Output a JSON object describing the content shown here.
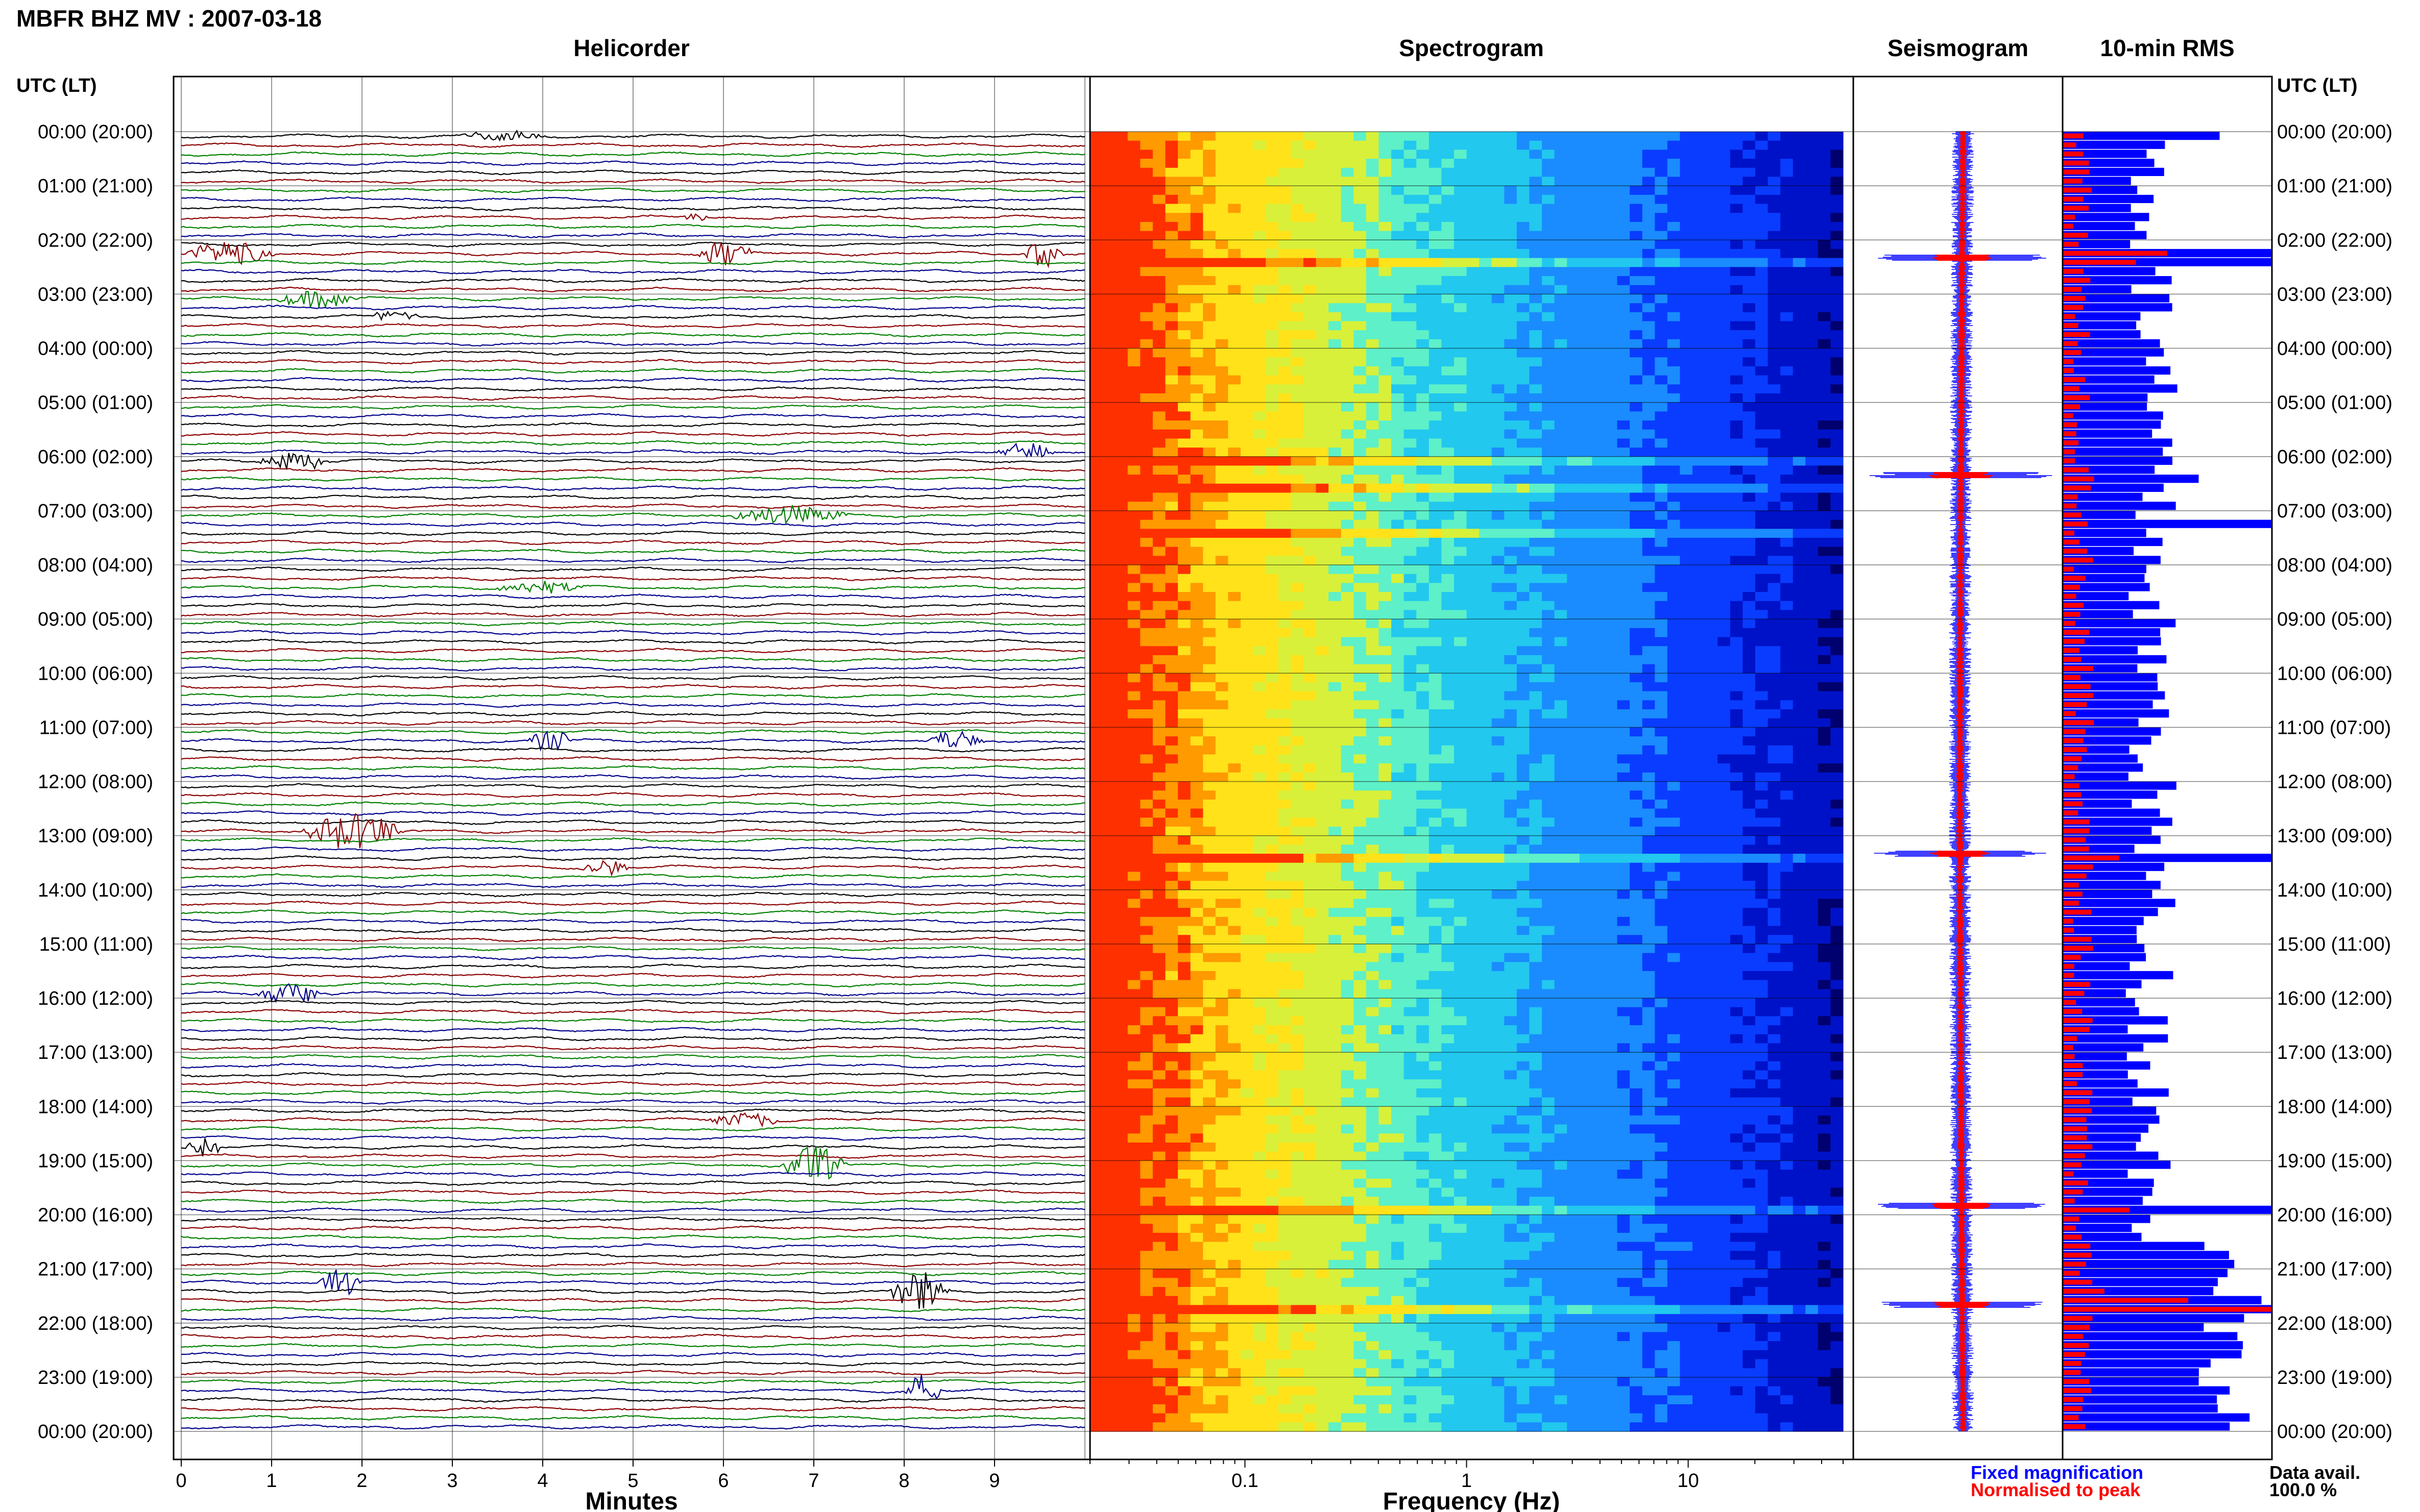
{
  "figure_title": "MBFR BHZ MV : 2007-03-18",
  "colors": {
    "helicorder_traces": [
      "#000000",
      "#8b0000",
      "#008000",
      "#00008b"
    ],
    "fixed_magnification": "#0000ff",
    "normalised_to_peak": "#ff0000",
    "frame": "#000000",
    "grid": "#000000"
  },
  "time_axis": {
    "label": "UTC (LT)",
    "ticks": [
      "00:00 (20:00)",
      "01:00 (21:00)",
      "02:00 (22:00)",
      "03:00 (23:00)",
      "04:00 (00:00)",
      "05:00 (01:00)",
      "06:00 (02:00)",
      "07:00 (03:00)",
      "08:00 (04:00)",
      "09:00 (05:00)",
      "10:00 (06:00)",
      "11:00 (07:00)",
      "12:00 (08:00)",
      "13:00 (09:00)",
      "14:00 (10:00)",
      "15:00 (11:00)",
      "16:00 (12:00)",
      "17:00 (13:00)",
      "18:00 (14:00)",
      "19:00 (15:00)",
      "20:00 (16:00)",
      "21:00 (17:00)",
      "22:00 (18:00)",
      "23:00 (19:00)",
      "00:00 (20:00)"
    ]
  },
  "chart_data": [
    {
      "type": "line",
      "title": "Helicorder",
      "xlabel": "Minutes",
      "ylabel": "UTC (LT)",
      "x_ticks": [
        "0",
        "1",
        "2",
        "3",
        "4",
        "5",
        "6",
        "7",
        "8",
        "9"
      ],
      "xlim": [
        0,
        10
      ],
      "rows": 144,
      "row_duration_minutes": 10,
      "color_cycle": [
        "black",
        "dark red",
        "green",
        "dark blue"
      ],
      "events": [
        {
          "time": "00:00",
          "start_min": 3.0,
          "end_min": 4.5,
          "strength": 0.6
        },
        {
          "time": "01:30",
          "start_min": 5.5,
          "end_min": 6.0,
          "strength": 0.5
        },
        {
          "time": "02:10",
          "start_min": 0.0,
          "end_min": 1.5,
          "strength": 1.4
        },
        {
          "time": "02:10",
          "start_min": 5.7,
          "end_min": 6.6,
          "strength": 1.6
        },
        {
          "time": "02:10",
          "start_min": 9.3,
          "end_min": 10.0,
          "strength": 1.5
        },
        {
          "time": "03:00",
          "start_min": 1.0,
          "end_min": 2.4,
          "strength": 1.0
        },
        {
          "time": "03:20",
          "start_min": 2.0,
          "end_min": 3.0,
          "strength": 0.6
        },
        {
          "time": "06:00",
          "start_min": 0.8,
          "end_min": 2.0,
          "strength": 1.1
        },
        {
          "time": "05:50",
          "start_min": 9.0,
          "end_min": 10.0,
          "strength": 1.0
        },
        {
          "time": "07:00",
          "start_min": 6.0,
          "end_min": 8.0,
          "strength": 1.1
        },
        {
          "time": "08:20",
          "start_min": 3.4,
          "end_min": 5.0,
          "strength": 0.7
        },
        {
          "time": "11:10",
          "start_min": 3.8,
          "end_min": 4.6,
          "strength": 1.2
        },
        {
          "time": "11:10",
          "start_min": 8.2,
          "end_min": 9.2,
          "strength": 1.1
        },
        {
          "time": "12:50",
          "start_min": 1.3,
          "end_min": 3.0,
          "strength": 2.2
        },
        {
          "time": "13:30",
          "start_min": 4.4,
          "end_min": 5.2,
          "strength": 1.0
        },
        {
          "time": "15:50",
          "start_min": 0.8,
          "end_min": 2.0,
          "strength": 1.2
        },
        {
          "time": "18:10",
          "start_min": 5.8,
          "end_min": 7.0,
          "strength": 0.9
        },
        {
          "time": "18:40",
          "start_min": 0.0,
          "end_min": 0.7,
          "strength": 1.2
        },
        {
          "time": "19:00",
          "start_min": 6.6,
          "end_min": 7.7,
          "strength": 2.2
        },
        {
          "time": "21:10",
          "start_min": 1.5,
          "end_min": 2.2,
          "strength": 2.0
        },
        {
          "time": "21:20",
          "start_min": 7.8,
          "end_min": 8.8,
          "strength": 2.4
        },
        {
          "time": "23:10",
          "start_min": 8.0,
          "end_min": 8.6,
          "strength": 2.0
        }
      ]
    },
    {
      "type": "heatmap",
      "title": "Spectrogram",
      "xlabel": "Frequency (Hz)",
      "x_scale": "log",
      "xlim": [
        0.02,
        50
      ],
      "x_ticks": [
        "0.1",
        "1",
        "10"
      ],
      "colormap": [
        "#ff3000",
        "#ff9a00",
        "#ffe21a",
        "#d8f03a",
        "#5ef0c8",
        "#22c8ee",
        "#1a8cff",
        "#0a3cff",
        "#0012c8",
        "#00006e"
      ],
      "colorscale_stops_log_hz": [
        -1.7,
        -1.4,
        -1.2,
        -0.85,
        -0.5,
        -0.2,
        0.25,
        0.8,
        1.3,
        1.7
      ],
      "bright_rows": [
        "02:20",
        "06:00",
        "06:30",
        "07:20",
        "13:20",
        "19:50",
        "21:40"
      ]
    },
    {
      "type": "line",
      "title": "Seismogram",
      "series": [
        {
          "name": "Fixed magnification",
          "color": "#0000ff"
        },
        {
          "name": "Normalised to peak",
          "color": "#ff0000"
        }
      ],
      "spikes": [
        "02:20",
        "06:20",
        "13:20",
        "19:50",
        "21:40"
      ]
    },
    {
      "type": "bar",
      "title": "10-min RMS",
      "orientation": "horizontal",
      "bins": 144,
      "series": [
        {
          "name": "Fixed magnification",
          "color": "#0000ff"
        },
        {
          "name": "Normalised to peak",
          "color": "#ff0000"
        }
      ],
      "peaks": [
        {
          "time": "00:00",
          "fixed": 0.75,
          "normalised": 0.1
        },
        {
          "time": "02:10",
          "fixed": 1.0,
          "normalised": 0.5
        },
        {
          "time": "02:20",
          "fixed": 1.0,
          "normalised": 0.35
        },
        {
          "time": "06:20",
          "fixed": 0.65,
          "normalised": 0.15
        },
        {
          "time": "07:10",
          "fixed": 1.0,
          "normalised": 0.12
        },
        {
          "time": "13:20",
          "fixed": 1.0,
          "normalised": 0.27
        },
        {
          "time": "19:50",
          "fixed": 1.0,
          "normalised": 0.32
        },
        {
          "time": "21:20",
          "fixed": 0.72,
          "normalised": 0.2
        },
        {
          "time": "21:30",
          "fixed": 0.95,
          "normalised": 0.6
        },
        {
          "time": "21:40",
          "fixed": 1.0,
          "normalised": 1.0
        }
      ],
      "baseline_fixed": 0.3,
      "baseline_normalised": 0.1
    }
  ],
  "legend": {
    "fixed_label": "Fixed magnification",
    "normalised_label": "Normalised to peak",
    "data_avail_label": "Data avail.",
    "data_avail_value": "100.0 %"
  }
}
